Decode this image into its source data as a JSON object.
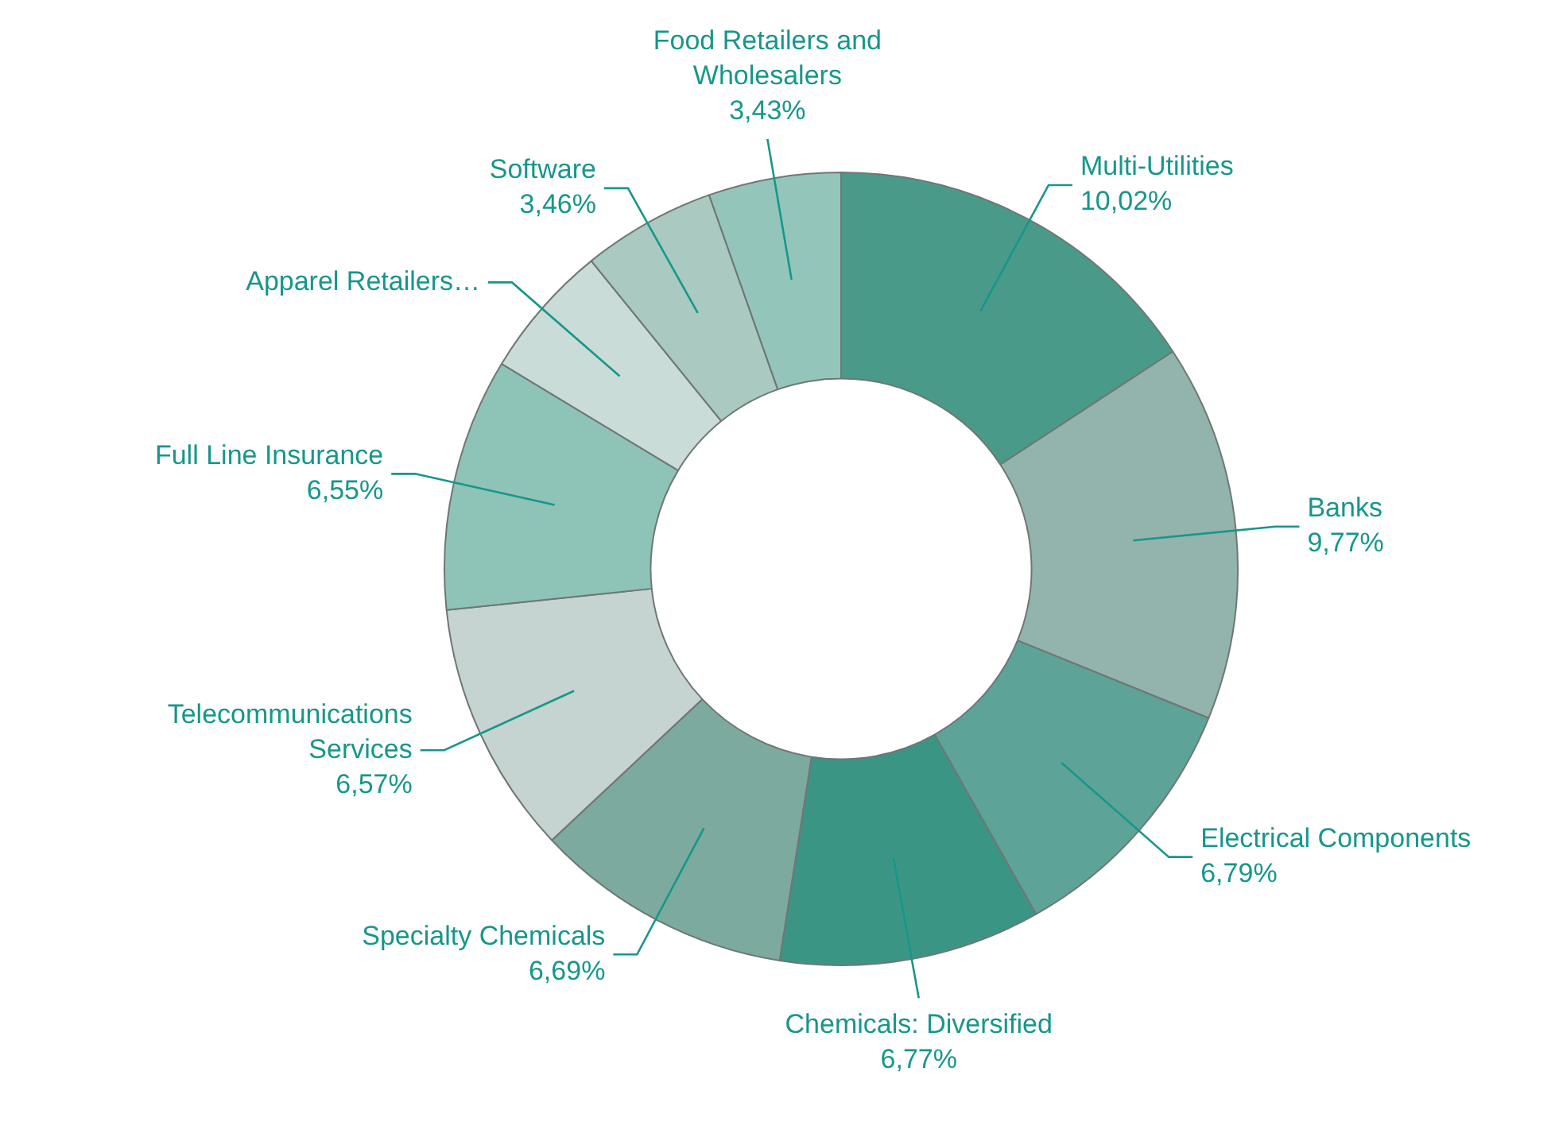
{
  "chart_data": {
    "type": "donut",
    "categories": [
      "Multi-Utilities",
      "Banks",
      "Electrical Components",
      "Chemicals: Diversified",
      "Specialty Chemicals",
      "Telecommunications Services",
      "Full Line Insurance",
      "Apparel Retailers…",
      "Software",
      "Food Retailers and Wholesalers"
    ],
    "values": [
      10.02,
      9.77,
      6.79,
      6.77,
      6.69,
      6.57,
      6.55,
      3.5,
      3.46,
      3.43
    ],
    "value_labels": [
      "10,02%",
      "9,77%",
      "6,79%",
      "6,77%",
      "6,69%",
      "6,57%",
      "6,55%",
      null,
      "3,46%",
      "3,43%"
    ],
    "colors": [
      "#4a9a8a",
      "#93b3ad",
      "#5ea398",
      "#3b9585",
      "#7caa9f",
      "#c5d3d1",
      "#8ec3b8",
      "#cadcd8",
      "#a9c9c1",
      "#94c5bb"
    ],
    "legend": false
  }
}
